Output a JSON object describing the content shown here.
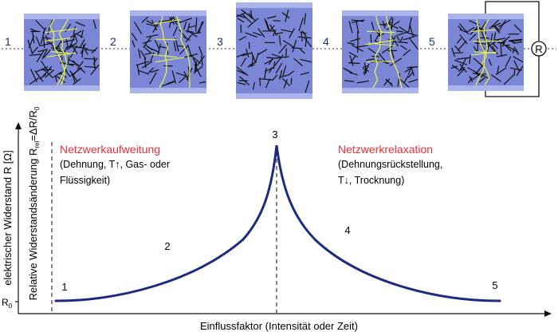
{
  "panels": [
    {
      "label": "1",
      "percolation": true
    },
    {
      "label": "2",
      "percolation": true
    },
    {
      "label": "3",
      "percolation": false
    },
    {
      "label": "4",
      "percolation": true
    },
    {
      "label": "5",
      "percolation": true
    }
  ],
  "resistor_symbol": "R",
  "chart": {
    "ylabel_outer": "elektrischer Widerstand R [Ω]",
    "ylabel_inner_prefix": "Relative Widerstandsänderung R",
    "ylabel_inner_sub": "rel",
    "ylabel_inner_mid": "=ΔR/R",
    "ylabel_inner_sub2": "0",
    "r0_label": "R",
    "r0_sub": "0",
    "xlabel": "Einflussfaktor (Intensität oder Zeit)",
    "point_labels": [
      "1",
      "2",
      "3",
      "4",
      "5"
    ],
    "left_title": "Netzwerkaufweitung",
    "left_line1": "(Dehnung, T↑, Gas- oder",
    "left_line2": "Flüssigkeit)",
    "right_title": "Netzwerkrelaxation",
    "right_line1": "(Dehnungsrückstellung,",
    "right_line2": "T↓, Trocknung)"
  },
  "colors": {
    "composite_fill": "#7b86d6",
    "composite_band": "#aab3ea",
    "fiber": "#111111",
    "path": "#e6f24a",
    "curve": "#1e2a80",
    "label_blue": "#1e2a80",
    "highlight_red": "#e8303a"
  }
}
